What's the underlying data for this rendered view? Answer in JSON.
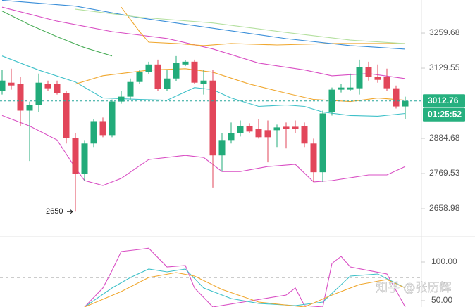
{
  "chart_data": [
    {
      "type": "candlestick",
      "log": true,
      "ylim": [
        2578,
        3387
      ],
      "yticks": [
        2658.98,
        2769.53,
        2884.68,
        3129.55,
        3259.68
      ],
      "up_color": "#22ab7a",
      "down_color": "#e2465a",
      "last_price": 3012.76,
      "countdown": "01:25:52",
      "min_marker": 2650,
      "min_index": 8,
      "open": [
        3047.5,
        3077.3,
        3072.3,
        2979.1,
        2998.5,
        3072.3,
        3072.3,
        3040.1,
        2886.4,
        2769.3,
        2867.7,
        2943.0,
        2895.7,
        3010.6,
        3027.8,
        3079.8,
        3114.9,
        3142.9,
        3055.0,
        3092.3,
        3142.9,
        3153.1,
        3072.3,
        3084.8,
        2828.4,
        2879.3,
        2902.7,
        2926.4,
        2917.0,
        2912.3,
        2912.3,
        2924.0,
        2924.0,
        2926.4,
        2867.7,
        2773.8,
        2974.3,
        3052.5,
        3052.5,
        3057.4,
        3132.7,
        3097.3,
        3097.3,
        3057.4,
        2993.6
      ],
      "high": [
        3122.5,
        3127.6,
        3097.3,
        3010.6,
        3109.9,
        3084.8,
        3084.8,
        3047.5,
        2902.7,
        2879.3,
        2950.2,
        2955.1,
        3018.0,
        3047.5,
        3092.3,
        3122.5,
        3153.1,
        3160.8,
        3122.5,
        3173.6,
        3158,
        3160.8,
        3122.5,
        3122.5,
        2902.7,
        2938.3,
        2945.4,
        2935.9,
        2950.2,
        2945.4,
        2931.2,
        2938.3,
        2945.4,
        2938.3,
        2884.0,
        2979.1,
        3059.9,
        3072.3,
        3109.9,
        3160.8,
        3153.1,
        3142.9,
        3127.6,
        3067.3,
        3027.8
      ],
      "low": [
        3035.2,
        3052.5,
        2926.4,
        2810.2,
        2974.3,
        3047.5,
        3035.2,
        2867.7,
        2650,
        2747.2,
        2856.1,
        2888.7,
        2888.7,
        3003.3,
        3018.0,
        3072.3,
        3107.3,
        3047.5,
        3047.5,
        3082.3,
        3137,
        3072.3,
        3035.2,
        2725.0,
        2776.0,
        2867.7,
        2891.0,
        2902.7,
        2884.0,
        2805.6,
        2856.1,
        2851.5,
        2902.7,
        2856.1,
        2742.8,
        2742.8,
        2962.3,
        3042.6,
        3047.5,
        3035.2,
        3084.8,
        3077.3,
        3047.5,
        2986.3,
        2950.2
      ],
      "close": [
        3084.8,
        3067.3,
        2979.1,
        2998.5,
        3077.3,
        3057.4,
        3040.1,
        2886.4,
        2769.3,
        2867.7,
        2943.0,
        2895.7,
        3010.6,
        3027.8,
        3079.8,
        3114.9,
        3142.9,
        3055.0,
        3092.3,
        3148.0,
        3153.1,
        3077.3,
        3084.8,
        2828.4,
        2879.3,
        2902.7,
        2926.4,
        2907.6,
        2888.7,
        2888.7,
        2921.7,
        2917.0,
        2917.0,
        2867.7,
        2773.8,
        2969.5,
        3052.5,
        3059.9,
        3059.9,
        3132.7,
        3097.3,
        3087.3,
        3057.4,
        2993.6,
        3012.76
      ],
      "series": [
        {
          "color": "#d94fc4",
          "x": [
            0,
            6,
            12,
            18,
            23,
            28,
            33,
            36,
            40,
            44
          ],
          "values": [
            3359,
            3305,
            3265,
            3239,
            3200,
            3148,
            3123,
            3102,
            3110,
            3092
          ]
        },
        {
          "color": "#d94fc4",
          "x": [
            0,
            3,
            6,
            8,
            9,
            11,
            13,
            16,
            20,
            22,
            24,
            26,
            29,
            32,
            34,
            36,
            40,
            42,
            44
          ],
          "values": [
            2962.3,
            2926.4,
            2879.3,
            2787.6,
            2747.2,
            2731.6,
            2754,
            2814.8,
            2828.4,
            2821.5,
            2776,
            2776,
            2792,
            2799,
            2742.8,
            2747.2,
            2765.1,
            2765.1,
            2792
          ]
        },
        {
          "color": "#3fc1c9",
          "x": [
            0,
            4,
            8,
            11,
            15,
            18,
            21,
            23,
            25,
            28,
            31,
            33,
            35,
            38,
            41,
            44
          ],
          "values": [
            3174,
            3122.5,
            3079.8,
            3023.1,
            3018.0,
            3015.3,
            3059.9,
            3052.5,
            3023.1,
            2993.6,
            2998.5,
            2993.6,
            2974.3,
            2962.3,
            2960,
            2969.5
          ]
        },
        {
          "color": "#f0a830",
          "x": [
            8,
            11,
            16,
            20,
            23,
            27,
            31,
            34,
            38,
            41,
            44
          ],
          "values": [
            3072.3,
            3102.3,
            3122.5,
            3127.6,
            3114.9,
            3072.3,
            3040.1,
            3018.0,
            3010.6,
            3022.9,
            3015.3
          ]
        },
        {
          "color": "#f0a830",
          "x": [
            13,
            15,
            16,
            19,
            22,
            25,
            30,
            36,
            40,
            44
          ],
          "values": [
            3359,
            3265,
            3225.5,
            3220.3,
            3212.5,
            3220.3,
            3215,
            3220.3,
            3220.3,
            3220.3
          ]
        },
        {
          "color": "#3b8fd9",
          "x": [
            0,
            8,
            15,
            23,
            31,
            38,
            44
          ],
          "values": [
            3386,
            3363,
            3318,
            3278,
            3238.6,
            3212.5,
            3199.6
          ]
        },
        {
          "color": "#b5e0a0",
          "x": [
            8,
            15,
            23,
            31,
            38,
            44
          ],
          "values": [
            3351,
            3320,
            3298,
            3262,
            3233,
            3220
          ]
        },
        {
          "color": "#4cae5a",
          "x": [
            0,
            3,
            6,
            9,
            12
          ],
          "values": [
            3344,
            3291,
            3246,
            3205,
            3174
          ]
        }
      ]
    },
    {
      "type": "line",
      "ylim": [
        41.8,
        130
      ],
      "yticks": [
        {
          "value": 100,
          "label": "100.00"
        },
        {
          "value": 50,
          "label": "50.00"
        }
      ],
      "reference_lines": [
        80
      ],
      "series": [
        {
          "color": "#d94fc4",
          "x": [
            9,
            11,
            12,
            13,
            15,
            16,
            18,
            20,
            21,
            23,
            31,
            32,
            33,
            35,
            36,
            37,
            38,
            40,
            42,
            44
          ],
          "values": [
            41.8,
            66.4,
            89,
            113.6,
            116.4,
            118,
            93.6,
            95.5,
            66.4,
            41.8,
            57.3,
            66.4,
            43.6,
            41.8,
            98.2,
            107.3,
            93.6,
            89,
            84.5,
            41.8
          ]
        },
        {
          "color": "#3fc1c9",
          "x": [
            9,
            12,
            14,
            16,
            18,
            20,
            22,
            25,
            28,
            32,
            35,
            38,
            41,
            44
          ],
          "values": [
            41.8,
            66.4,
            80,
            90.9,
            87.3,
            90.9,
            66.4,
            52.7,
            46.4,
            43.6,
            48.2,
            81.8,
            84.5,
            66.4
          ]
        },
        {
          "color": "#f0a830",
          "x": [
            9,
            13,
            16,
            19,
            21,
            24,
            28,
            33,
            36,
            39,
            42,
            44
          ],
          "values": [
            41.8,
            61.8,
            80,
            86.4,
            81.8,
            64.5,
            48.2,
            41.8,
            57.3,
            70.9,
            77.3,
            66.4
          ]
        }
      ]
    }
  ],
  "watermark": "知乎 @张历辉"
}
